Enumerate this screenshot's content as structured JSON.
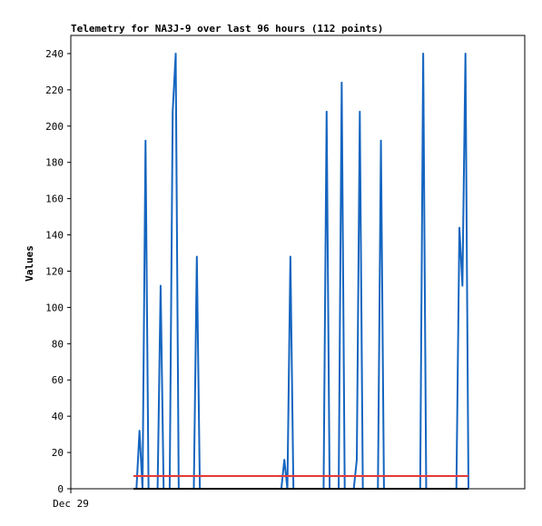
{
  "chart_data": {
    "type": "line",
    "title": "Telemetry for NA3J-9 over last 96 hours (112 points)",
    "xlabel": "",
    "ylabel": "Values",
    "ylim": [
      0,
      250
    ],
    "yticks": [
      0,
      20,
      40,
      60,
      80,
      100,
      120,
      140,
      160,
      180,
      200,
      220,
      240
    ],
    "xtick_labels": [
      "Dec 29"
    ],
    "grid": false,
    "legend": "none",
    "series": [
      {
        "color": "#1565c0",
        "x": [
          0,
          1,
          2,
          3,
          4,
          5,
          6,
          7,
          8,
          9,
          10,
          11,
          12,
          13,
          14,
          15,
          16,
          17,
          18,
          19,
          20,
          21,
          22,
          23,
          24,
          25,
          26,
          27,
          28,
          29,
          30,
          31,
          32,
          33,
          34,
          35,
          36,
          37,
          38,
          39,
          40,
          41,
          42,
          43,
          44,
          45,
          46,
          47,
          48,
          49,
          50,
          51,
          52,
          53,
          54,
          55,
          56,
          57,
          58,
          59,
          60,
          61,
          62,
          63,
          64,
          65,
          66,
          67,
          68,
          69,
          70,
          71,
          72,
          73,
          74,
          75,
          76,
          77,
          78,
          79,
          80,
          81,
          82,
          83,
          84,
          85,
          86,
          87,
          88,
          89,
          90,
          91,
          92,
          93,
          94,
          95,
          96,
          97,
          98,
          99,
          100,
          101,
          102,
          103,
          104,
          105,
          106,
          107,
          108,
          109,
          110,
          111
        ],
        "values": [
          0,
          0,
          32,
          0,
          192,
          0,
          0,
          0,
          0,
          112,
          0,
          0,
          0,
          208,
          240,
          0,
          0,
          0,
          0,
          0,
          0,
          128,
          0,
          0,
          0,
          0,
          0,
          0,
          0,
          0,
          0,
          0,
          0,
          0,
          0,
          0,
          0,
          0,
          0,
          0,
          0,
          0,
          0,
          0,
          0,
          0,
          0,
          0,
          0,
          0,
          16,
          0,
          128,
          0,
          0,
          0,
          0,
          0,
          0,
          0,
          0,
          0,
          0,
          0,
          208,
          0,
          0,
          0,
          0,
          224,
          0,
          0,
          0,
          0,
          16,
          208,
          0,
          0,
          0,
          0,
          0,
          0,
          192,
          0,
          0,
          0,
          0,
          0,
          0,
          0,
          0,
          0,
          0,
          0,
          0,
          0,
          240,
          0,
          0,
          0,
          0,
          0,
          0,
          0,
          0,
          0,
          0,
          0,
          144,
          112,
          240,
          0
        ]
      },
      {
        "color": "#e53935",
        "x": [
          0,
          111
        ],
        "values": [
          7,
          7
        ]
      },
      {
        "color": "#000000",
        "x": [
          0,
          111
        ],
        "values": [
          0,
          0
        ]
      }
    ]
  }
}
